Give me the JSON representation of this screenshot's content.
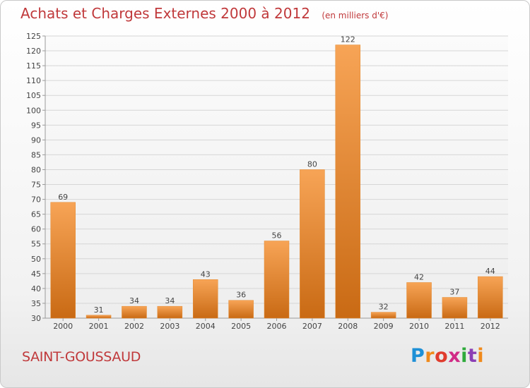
{
  "header": {
    "title": "Achats et Charges Externes 2000 à 2012",
    "subtitle": "(en milliers d'€)"
  },
  "footer": {
    "town": "SAINT-GOUSSAUD",
    "logo_letters": [
      "P",
      "r",
      "o",
      "x",
      "i",
      "t",
      "i"
    ],
    "logo_colors": [
      "#1e90d6",
      "#f08a1c",
      "#e03c2d",
      "#d12b86",
      "#2eaa3b",
      "#8b3fb5",
      "#f08a1c"
    ]
  },
  "colors": {
    "bar_top": "#f7a456",
    "bar_bottom": "#c96a14",
    "grid": "#d6d6d6",
    "title": "#c0393b"
  },
  "chart_data": {
    "type": "bar",
    "categories": [
      "2000",
      "2001",
      "2002",
      "2003",
      "2004",
      "2005",
      "2006",
      "2007",
      "2008",
      "2009",
      "2010",
      "2011",
      "2012"
    ],
    "values": [
      69,
      31,
      34,
      34,
      43,
      36,
      56,
      80,
      122,
      32,
      42,
      37,
      44
    ],
    "ylim": [
      30,
      125
    ],
    "yticks": [
      30,
      35,
      40,
      45,
      50,
      55,
      60,
      65,
      70,
      75,
      80,
      85,
      90,
      95,
      100,
      105,
      110,
      115,
      120,
      125
    ],
    "grid": true,
    "title": "Achats et Charges Externes 2000 à 2012",
    "xlabel": "",
    "ylabel": ""
  }
}
